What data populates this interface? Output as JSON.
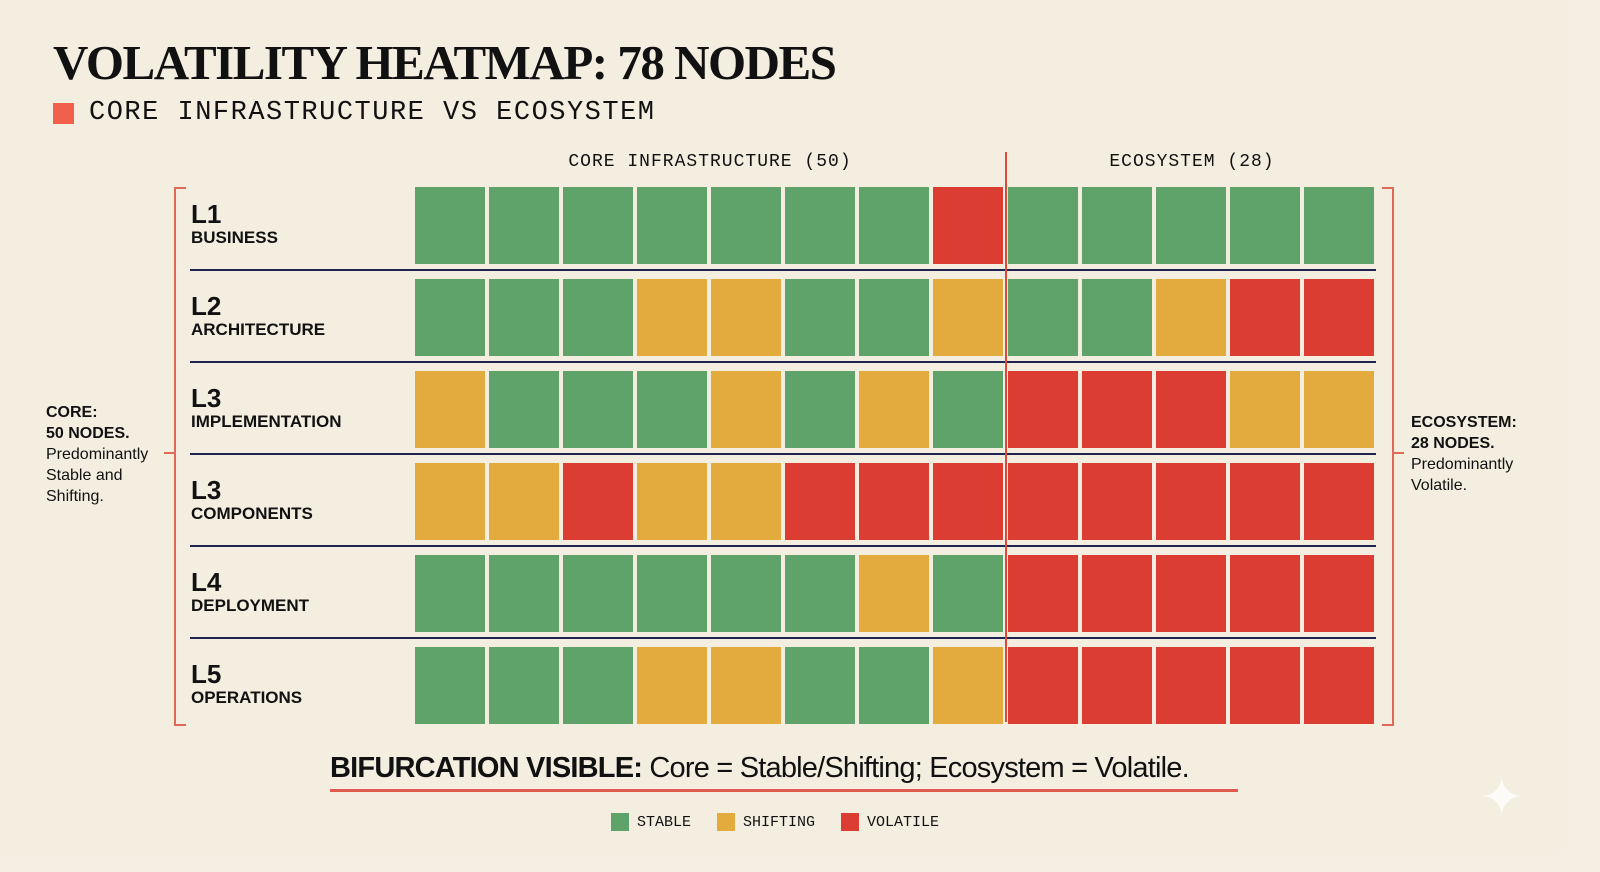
{
  "title": "VOLATILITY HEATMAP: 78 NODES",
  "subtitle": "CORE INFRASTRUCTURE VS ECOSYSTEM",
  "chart_data": {
    "type": "heatmap",
    "groups": [
      {
        "label": "CORE INFRASTRUCTURE (50)",
        "columns": 8
      },
      {
        "label": "ECOSYSTEM (28)",
        "columns": 5
      }
    ],
    "rows": [
      {
        "level": "L1",
        "name": "BUSINESS",
        "values": [
          "stable",
          "stable",
          "stable",
          "stable",
          "stable",
          "stable",
          "stable",
          "volatile",
          "stable",
          "stable",
          "stable",
          "stable",
          "stable"
        ]
      },
      {
        "level": "L2",
        "name": "ARCHITECTURE",
        "values": [
          "stable",
          "stable",
          "stable",
          "shifting",
          "shifting",
          "stable",
          "stable",
          "shifting",
          "stable",
          "stable",
          "shifting",
          "volatile",
          "volatile"
        ]
      },
      {
        "level": "L3",
        "name": "IMPLEMENTATION",
        "values": [
          "shifting",
          "stable",
          "stable",
          "stable",
          "shifting",
          "stable",
          "shifting",
          "stable",
          "volatile",
          "volatile",
          "volatile",
          "shifting",
          "shifting"
        ]
      },
      {
        "level": "L3",
        "name": "COMPONENTS",
        "values": [
          "shifting",
          "shifting",
          "volatile",
          "shifting",
          "shifting",
          "volatile",
          "volatile",
          "volatile",
          "volatile",
          "volatile",
          "volatile",
          "volatile",
          "volatile"
        ]
      },
      {
        "level": "L4",
        "name": "DEPLOYMENT",
        "values": [
          "stable",
          "stable",
          "stable",
          "stable",
          "stable",
          "stable",
          "shifting",
          "stable",
          "volatile",
          "volatile",
          "volatile",
          "volatile",
          "volatile"
        ]
      },
      {
        "level": "L5",
        "name": "OPERATIONS",
        "values": [
          "stable",
          "stable",
          "stable",
          "shifting",
          "shifting",
          "stable",
          "stable",
          "shifting",
          "volatile",
          "volatile",
          "volatile",
          "volatile",
          "volatile"
        ]
      }
    ],
    "legend": [
      {
        "key": "stable",
        "label": "STABLE",
        "color": "#5fa36b"
      },
      {
        "key": "shifting",
        "label": "SHIFTING",
        "color": "#e3aa3e"
      },
      {
        "key": "volatile",
        "label": "VOLATILE",
        "color": "#dc3d33"
      }
    ],
    "legend_position": "bottom"
  },
  "annotations": {
    "core_head": "CORE:",
    "core_count": "50 NODES.",
    "core_text": "Predominantly Stable and Shifting.",
    "eco_head": "ECOSYSTEM:",
    "eco_count": "28 NODES.",
    "eco_text": "Predominantly Volatile."
  },
  "summary": {
    "bold": "BIFURCATION VISIBLE:",
    "text": " Core = Stable/Shifting; Ecosystem = Volatile."
  },
  "accent_color": "#f0604a"
}
